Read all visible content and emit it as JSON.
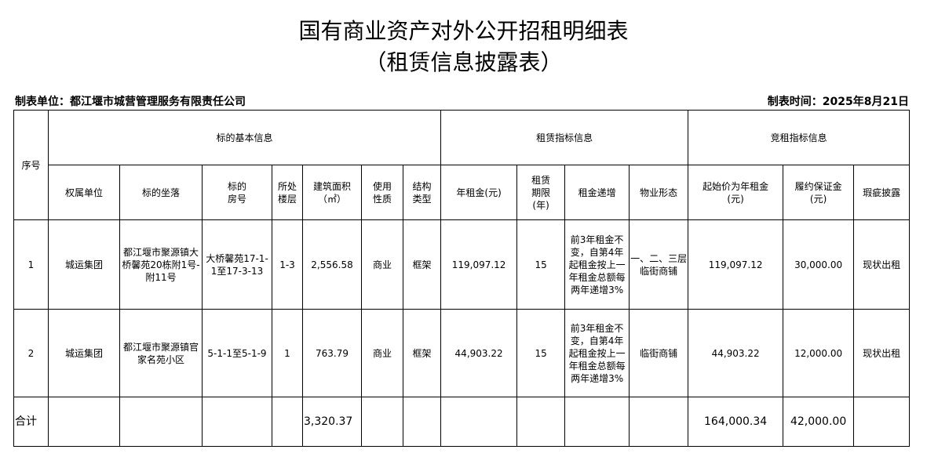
{
  "title": "国有商业资产对外公开招租明细表",
  "subtitle": "（租赁信息披露表）",
  "unit_label": "制表单位：都江堰市城营管理服务有限责任公司",
  "date_label": "制表时间：2025年8月21日",
  "headers": {
    "seq": "序号",
    "group_basic": "标的基本信息",
    "group_lease": "租赁指标信息",
    "group_bid": "竞租指标信息",
    "cols": [
      "权属单位",
      "标的坐落",
      "标的\n房号",
      "所处\n楼层",
      "建筑面积\n（㎡）",
      "使用\n性质",
      "结构\n类型",
      "年租金(元)",
      "租赁\n期限\n(年)",
      "租金递增",
      "物业形态",
      "起始价为年租金\n(元)",
      "履约保证金\n(元)",
      "瑕疵披露"
    ]
  },
  "rows": [
    [
      "1",
      "城运集团",
      "都江堰市聚源镇大桥馨苑20栋附1号-附11号",
      "大桥馨苑17-1-1至17-3-13",
      "1-3",
      "2,556.58",
      "商业",
      "框架",
      "119,097.12",
      "15",
      "前3年租金不变，自第4年起租金按上一年租金总额每两年递增3%",
      "一、二、三层临街商铺",
      "119,097.12",
      "30,000.00",
      "现状出租"
    ],
    [
      "2",
      "城运集团",
      "都江堰市聚源镇官家名苑小区",
      "5-1-1至5-1-9",
      "1",
      "763.79",
      "商业",
      "框架",
      "44,903.22",
      "15",
      "前3年租金不变，自第4年起租金按上一年租金总额每两年递增3%",
      "临街商铺",
      "44,903.22",
      "12,000.00",
      "现状出租"
    ]
  ],
  "total": {
    "label": "合计",
    "area": "3,320.37",
    "start_price": "164,000.34",
    "deposit": "42,000.00"
  }
}
